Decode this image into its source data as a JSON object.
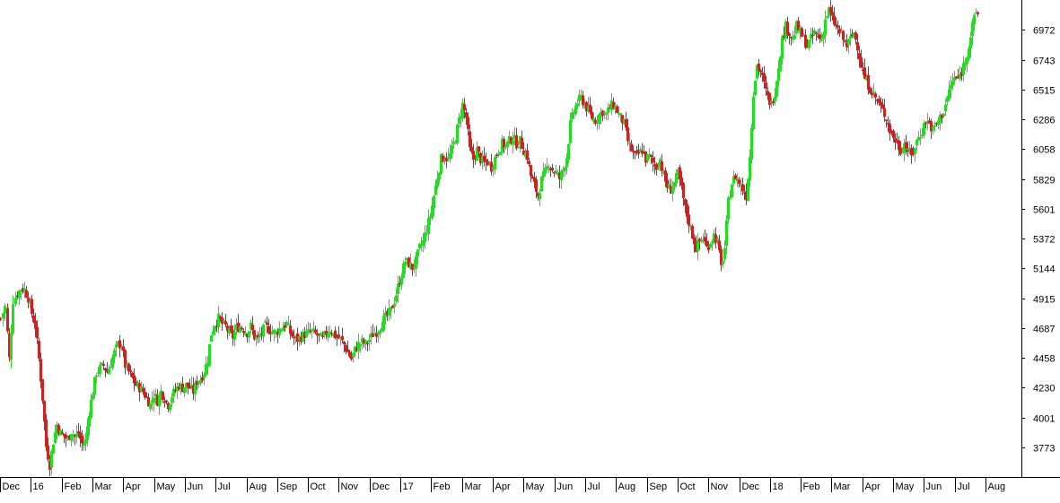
{
  "chart_data": {
    "type": "candlestick",
    "title": "",
    "xlabel": "",
    "ylabel": "",
    "ylim": [
      3546,
      7200
    ],
    "y_ticks": [
      3773,
      4001,
      4230,
      4458,
      4687,
      4915,
      5144,
      5372,
      5601,
      5829,
      6058,
      6286,
      6515,
      6743,
      6972
    ],
    "x_ticks": [
      "Dec",
      "16",
      "Feb",
      "Mar",
      "Apr",
      "May",
      "Jun",
      "Jul",
      "Aug",
      "Sep",
      "Oct",
      "Nov",
      "Dec",
      "17",
      "Feb",
      "Mar",
      "Apr",
      "May",
      "Jun",
      "Jul",
      "Aug",
      "Sep",
      "Oct",
      "Nov",
      "Dec",
      "18",
      "Feb",
      "Mar",
      "Apr",
      "May",
      "Jun",
      "Jul",
      "Aug"
    ],
    "grid": false,
    "legend": "none",
    "up_color": "#22dd22",
    "down_color": "#cc2222",
    "series": [
      {
        "points": [
          [
            0,
            4760
          ],
          [
            5,
            4850
          ],
          [
            10,
            4450
          ],
          [
            14,
            4900
          ],
          [
            19,
            4950
          ],
          [
            23,
            4990
          ],
          [
            27,
            4980
          ],
          [
            31,
            4920
          ],
          [
            35,
            4800
          ],
          [
            39,
            4700
          ],
          [
            43,
            4450
          ],
          [
            47,
            4150
          ],
          [
            51,
            3780
          ],
          [
            55,
            3640
          ],
          [
            59,
            3820
          ],
          [
            63,
            3950
          ],
          [
            67,
            3880
          ],
          [
            71,
            3860
          ],
          [
            75,
            3830
          ],
          [
            79,
            3900
          ],
          [
            83,
            3850
          ],
          [
            87,
            3880
          ],
          [
            91,
            3800
          ],
          [
            95,
            3820
          ],
          [
            99,
            4050
          ],
          [
            103,
            4200
          ],
          [
            107,
            4350
          ],
          [
            111,
            4380
          ],
          [
            115,
            4400
          ],
          [
            119,
            4350
          ],
          [
            123,
            4420
          ],
          [
            127,
            4500
          ],
          [
            131,
            4560
          ],
          [
            135,
            4560
          ],
          [
            139,
            4400
          ],
          [
            143,
            4350
          ],
          [
            147,
            4300
          ],
          [
            151,
            4250
          ],
          [
            155,
            4230
          ],
          [
            159,
            4200
          ],
          [
            163,
            4150
          ],
          [
            167,
            4100
          ],
          [
            171,
            4180
          ],
          [
            175,
            4130
          ],
          [
            179,
            4200
          ],
          [
            183,
            4150
          ],
          [
            187,
            4100
          ],
          [
            191,
            4170
          ],
          [
            195,
            4210
          ],
          [
            199,
            4250
          ],
          [
            203,
            4230
          ],
          [
            207,
            4250
          ],
          [
            211,
            4230
          ],
          [
            215,
            4200
          ],
          [
            219,
            4280
          ],
          [
            223,
            4300
          ],
          [
            227,
            4350
          ],
          [
            231,
            4450
          ],
          [
            235,
            4650
          ],
          [
            239,
            4720
          ],
          [
            243,
            4760
          ],
          [
            247,
            4720
          ],
          [
            251,
            4700
          ],
          [
            255,
            4650
          ],
          [
            259,
            4620
          ],
          [
            263,
            4690
          ],
          [
            267,
            4700
          ],
          [
            271,
            4680
          ],
          [
            275,
            4650
          ],
          [
            279,
            4700
          ],
          [
            283,
            4620
          ],
          [
            287,
            4600
          ],
          [
            291,
            4650
          ],
          [
            295,
            4700
          ],
          [
            299,
            4680
          ],
          [
            303,
            4660
          ],
          [
            307,
            4650
          ],
          [
            311,
            4680
          ],
          [
            315,
            4700
          ],
          [
            319,
            4720
          ],
          [
            323,
            4650
          ],
          [
            327,
            4610
          ],
          [
            331,
            4600
          ],
          [
            335,
            4620
          ],
          [
            339,
            4640
          ],
          [
            343,
            4650
          ],
          [
            347,
            4660
          ],
          [
            351,
            4640
          ],
          [
            355,
            4620
          ],
          [
            359,
            4600
          ],
          [
            363,
            4650
          ],
          [
            367,
            4680
          ],
          [
            371,
            4640
          ],
          [
            375,
            4620
          ],
          [
            379,
            4600
          ],
          [
            383,
            4560
          ],
          [
            387,
            4500
          ],
          [
            391,
            4450
          ],
          [
            395,
            4520
          ],
          [
            399,
            4560
          ],
          [
            403,
            4580
          ],
          [
            407,
            4560
          ],
          [
            411,
            4600
          ],
          [
            415,
            4640
          ],
          [
            419,
            4660
          ],
          [
            423,
            4700
          ],
          [
            427,
            4750
          ],
          [
            431,
            4780
          ],
          [
            435,
            4820
          ],
          [
            439,
            4900
          ],
          [
            443,
            5000
          ],
          [
            447,
            5100
          ],
          [
            451,
            5200
          ],
          [
            455,
            5180
          ],
          [
            459,
            5150
          ],
          [
            463,
            5200
          ],
          [
            467,
            5300
          ],
          [
            471,
            5350
          ],
          [
            475,
            5450
          ],
          [
            479,
            5550
          ],
          [
            483,
            5700
          ],
          [
            487,
            5850
          ],
          [
            491,
            5980
          ],
          [
            495,
            6000
          ],
          [
            499,
            5980
          ],
          [
            503,
            6050
          ],
          [
            507,
            6150
          ],
          [
            511,
            6280
          ],
          [
            515,
            6400
          ],
          [
            519,
            6300
          ],
          [
            523,
            6050
          ],
          [
            527,
            5980
          ],
          [
            531,
            6050
          ],
          [
            535,
            5980
          ],
          [
            539,
            5950
          ],
          [
            543,
            5960
          ],
          [
            547,
            5920
          ],
          [
            551,
            5990
          ],
          [
            555,
            6050
          ],
          [
            559,
            6100
          ],
          [
            563,
            6080
          ],
          [
            567,
            6120
          ],
          [
            571,
            6150
          ],
          [
            575,
            6100
          ],
          [
            579,
            6120
          ],
          [
            583,
            6050
          ],
          [
            587,
            6000
          ],
          [
            591,
            5850
          ],
          [
            595,
            5780
          ],
          [
            599,
            5700
          ],
          [
            603,
            5820
          ],
          [
            607,
            5880
          ],
          [
            611,
            5950
          ],
          [
            615,
            5900
          ],
          [
            619,
            5880
          ],
          [
            623,
            5830
          ],
          [
            627,
            5900
          ],
          [
            631,
            6000
          ],
          [
            635,
            6250
          ],
          [
            639,
            6350
          ],
          [
            643,
            6420
          ],
          [
            647,
            6450
          ],
          [
            651,
            6400
          ],
          [
            655,
            6350
          ],
          [
            659,
            6300
          ],
          [
            663,
            6280
          ],
          [
            667,
            6320
          ],
          [
            671,
            6350
          ],
          [
            675,
            6320
          ],
          [
            679,
            6380
          ],
          [
            683,
            6400
          ],
          [
            687,
            6350
          ],
          [
            691,
            6300
          ],
          [
            695,
            6250
          ],
          [
            699,
            6120
          ],
          [
            703,
            6050
          ],
          [
            707,
            6000
          ],
          [
            711,
            6020
          ],
          [
            715,
            6050
          ],
          [
            719,
            5980
          ],
          [
            723,
            6000
          ],
          [
            727,
            5950
          ],
          [
            731,
            5920
          ],
          [
            735,
            5980
          ],
          [
            739,
            5850
          ],
          [
            743,
            5770
          ],
          [
            747,
            5750
          ],
          [
            751,
            5800
          ],
          [
            755,
            5870
          ],
          [
            759,
            5750
          ],
          [
            763,
            5600
          ],
          [
            767,
            5500
          ],
          [
            771,
            5400
          ],
          [
            775,
            5300
          ],
          [
            779,
            5350
          ],
          [
            783,
            5380
          ],
          [
            787,
            5300
          ],
          [
            791,
            5350
          ],
          [
            795,
            5400
          ],
          [
            799,
            5350
          ],
          [
            803,
            5150
          ],
          [
            807,
            5300
          ],
          [
            811,
            5650
          ],
          [
            815,
            5800
          ],
          [
            819,
            5850
          ],
          [
            823,
            5800
          ],
          [
            827,
            5750
          ],
          [
            831,
            5700
          ],
          [
            835,
            6000
          ],
          [
            839,
            6500
          ],
          [
            843,
            6700
          ],
          [
            847,
            6650
          ],
          [
            851,
            6550
          ],
          [
            855,
            6450
          ],
          [
            859,
            6400
          ],
          [
            863,
            6500
          ],
          [
            867,
            6700
          ],
          [
            871,
            6900
          ],
          [
            875,
            7000
          ],
          [
            879,
            6950
          ],
          [
            883,
            6900
          ],
          [
            887,
            7000
          ],
          [
            891,
            6950
          ],
          [
            895,
            6900
          ],
          [
            899,
            6850
          ],
          [
            903,
            6900
          ],
          [
            907,
            6950
          ],
          [
            911,
            6920
          ],
          [
            915,
            6900
          ],
          [
            919,
            7050
          ],
          [
            923,
            7120
          ],
          [
            927,
            7050
          ],
          [
            931,
            7000
          ],
          [
            935,
            6950
          ],
          [
            939,
            6900
          ],
          [
            943,
            6850
          ],
          [
            947,
            6900
          ],
          [
            951,
            6950
          ],
          [
            955,
            6850
          ],
          [
            959,
            6700
          ],
          [
            963,
            6600
          ],
          [
            967,
            6550
          ],
          [
            971,
            6500
          ],
          [
            975,
            6450
          ],
          [
            979,
            6400
          ],
          [
            983,
            6350
          ],
          [
            987,
            6300
          ],
          [
            991,
            6200
          ],
          [
            995,
            6150
          ],
          [
            999,
            6100
          ],
          [
            1003,
            6050
          ],
          [
            1007,
            6100
          ],
          [
            1011,
            6050
          ],
          [
            1015,
            6000
          ],
          [
            1019,
            6080
          ],
          [
            1023,
            6150
          ],
          [
            1027,
            6200
          ],
          [
            1031,
            6280
          ],
          [
            1035,
            6250
          ],
          [
            1039,
            6200
          ],
          [
            1043,
            6250
          ],
          [
            1047,
            6300
          ],
          [
            1051,
            6350
          ],
          [
            1055,
            6450
          ],
          [
            1059,
            6550
          ],
          [
            1063,
            6600
          ],
          [
            1067,
            6600
          ],
          [
            1071,
            6650
          ],
          [
            1075,
            6750
          ],
          [
            1079,
            6850
          ],
          [
            1083,
            7000
          ],
          [
            1087,
            7100
          ]
        ]
      }
    ]
  }
}
